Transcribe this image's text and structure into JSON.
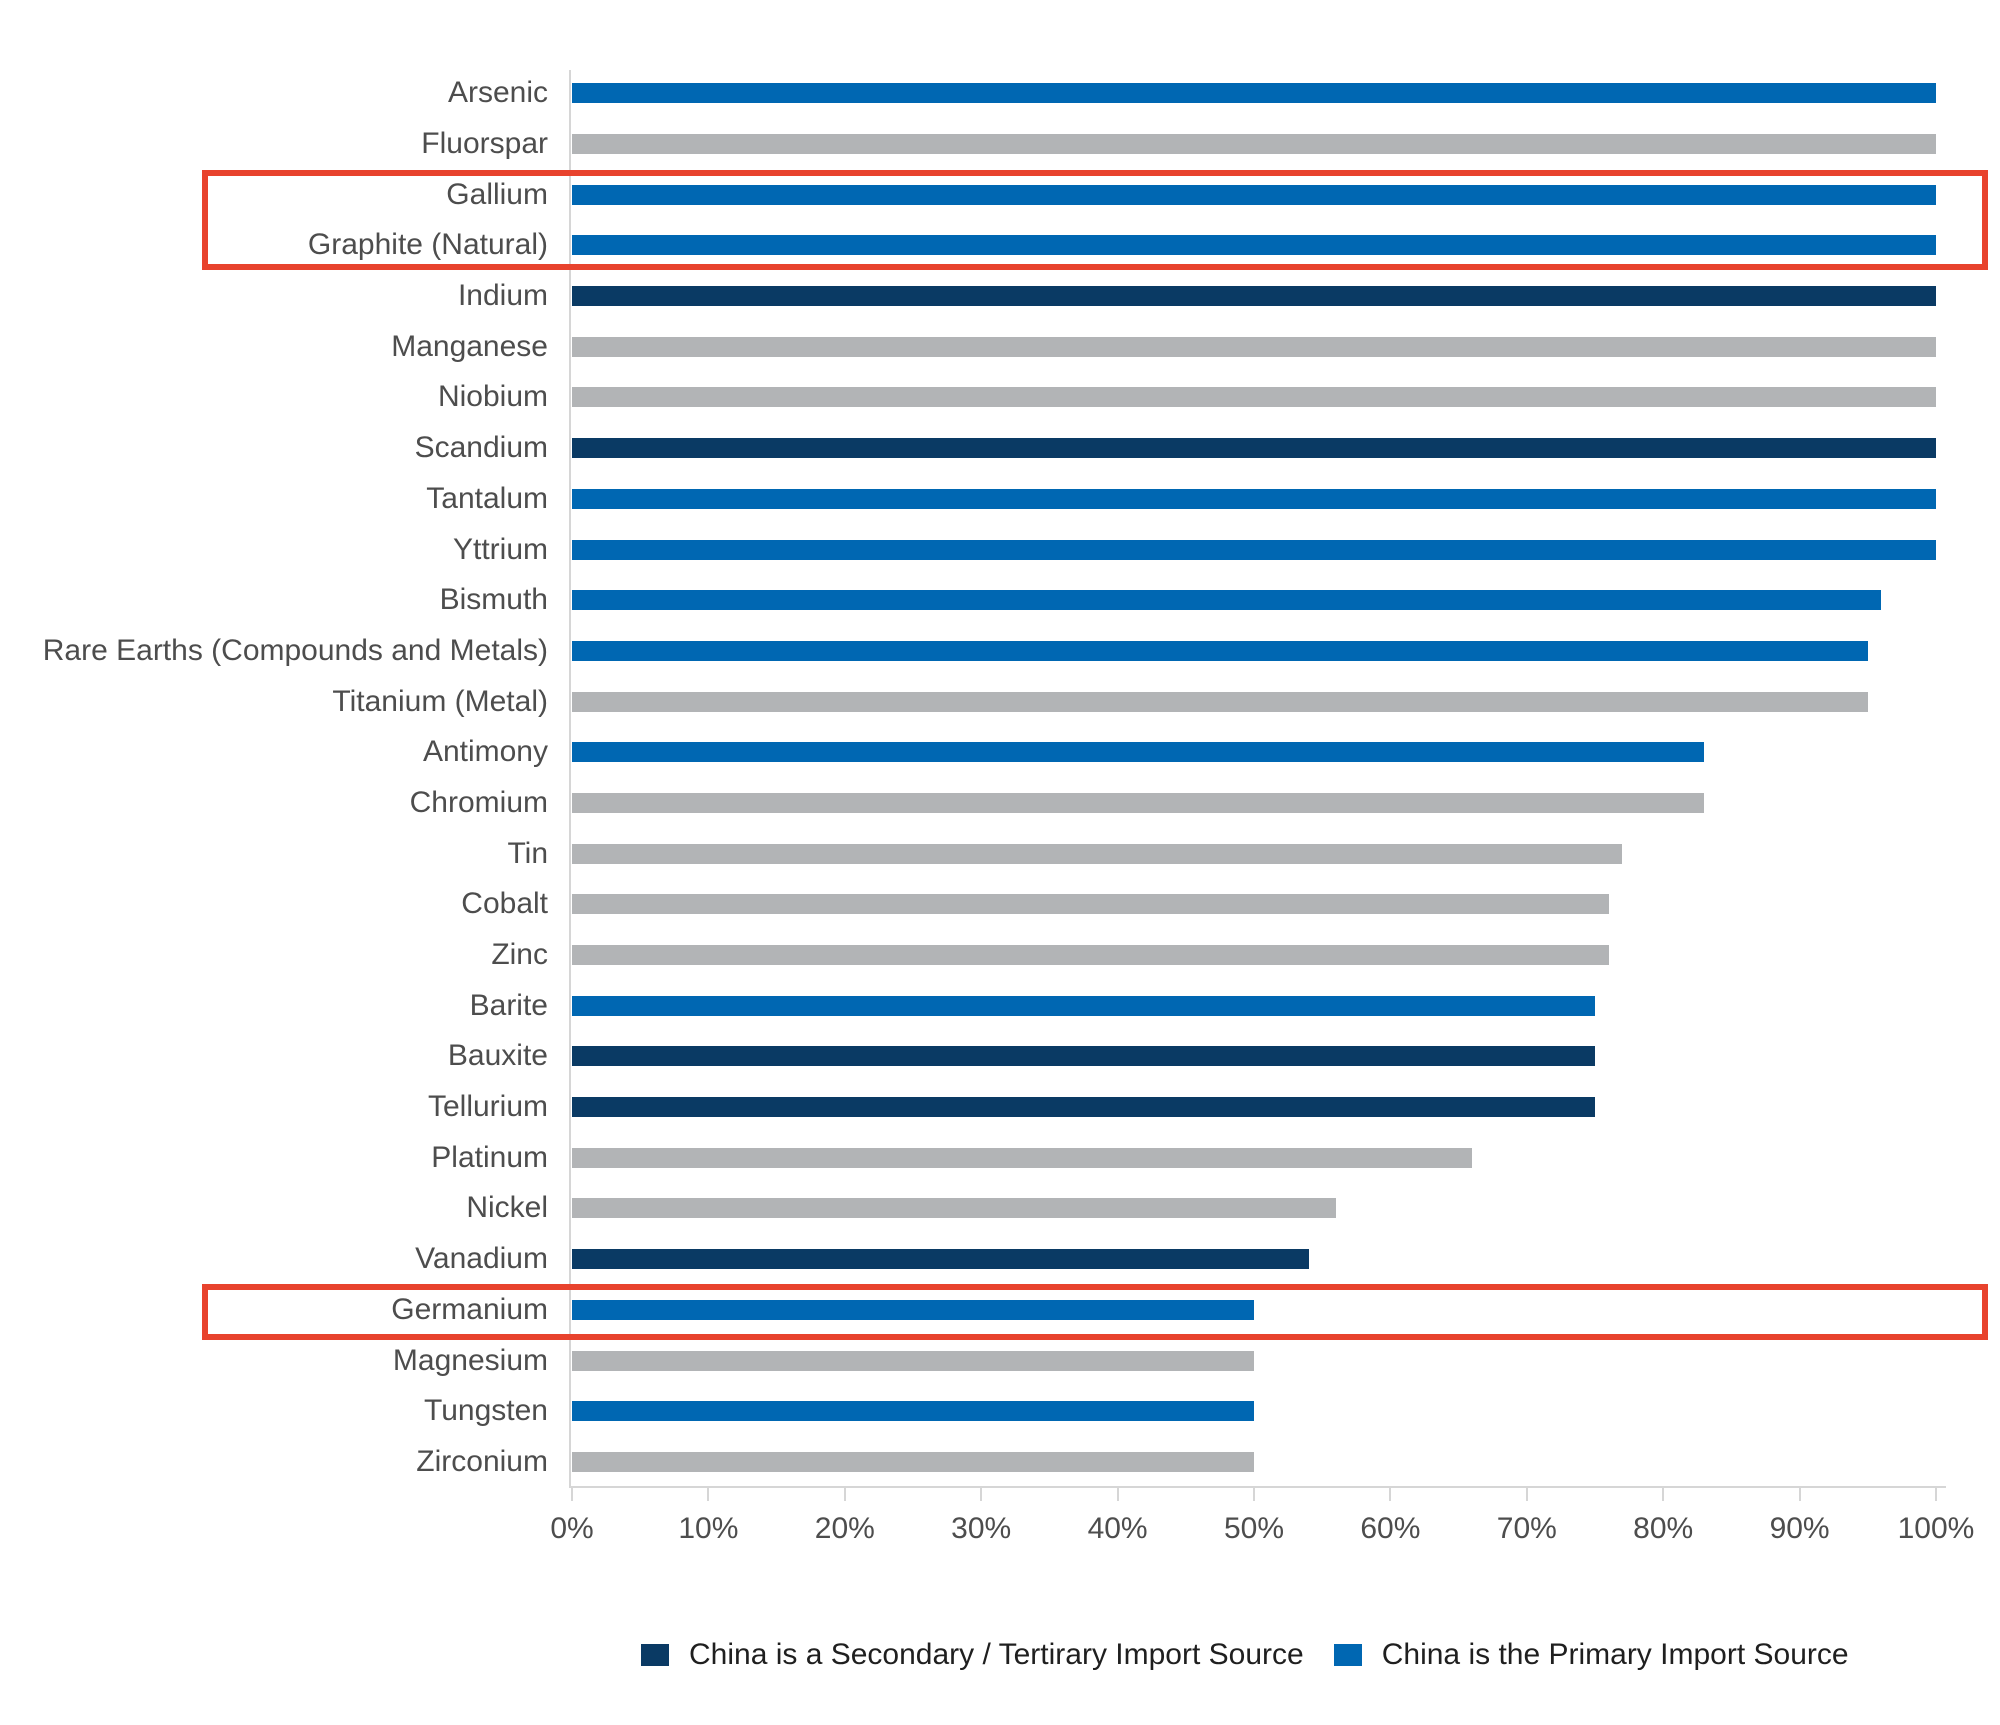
{
  "chart_data": {
    "type": "bar",
    "orientation": "horizontal",
    "title": "",
    "xlabel": "",
    "ylabel": "",
    "xlim": [
      0,
      100
    ],
    "grid": false,
    "x_ticks": [
      "0%",
      "10%",
      "20%",
      "30%",
      "40%",
      "50%",
      "60%",
      "70%",
      "80%",
      "90%",
      "100%"
    ],
    "categories": [
      "Arsenic",
      "Fluorspar",
      "Gallium",
      "Graphite (Natural)",
      "Indium",
      "Manganese",
      "Niobium",
      "Scandium",
      "Tantalum",
      "Yttrium",
      "Bismuth",
      "Rare Earths (Compounds and Metals)",
      "Titanium (Metal)",
      "Antimony",
      "Chromium",
      "Tin",
      "Cobalt",
      "Zinc",
      "Barite",
      "Bauxite",
      "Tellurium",
      "Platinum",
      "Nickel",
      "Vanadium",
      "Germanium",
      "Magnesium",
      "Tungsten",
      "Zirconium"
    ],
    "values": [
      100,
      100,
      100,
      100,
      100,
      100,
      100,
      100,
      100,
      100,
      96,
      95,
      95,
      83,
      83,
      77,
      76,
      76,
      75,
      75,
      75,
      66,
      56,
      54,
      50,
      50,
      50,
      50
    ],
    "china_role": [
      "primary",
      "other",
      "primary",
      "primary",
      "secondary",
      "other",
      "other",
      "secondary",
      "primary",
      "primary",
      "primary",
      "primary",
      "other",
      "primary",
      "other",
      "other",
      "other",
      "other",
      "primary",
      "secondary",
      "secondary",
      "other",
      "other",
      "secondary",
      "primary",
      "other",
      "primary",
      "other"
    ],
    "highlighted_categories": [
      "Gallium",
      "Graphite (Natural)",
      "Germanium"
    ],
    "legend": [
      {
        "role": "secondary",
        "label": "China is a Secondary / Tertirary Import Source"
      },
      {
        "role": "primary",
        "label": "China is the Primary Import Source"
      }
    ],
    "legend_position": "bottom",
    "colors": {
      "primary": "#0067B2",
      "secondary": "#0A3A64",
      "other": "#B2B4B6",
      "highlight_box": "#E8432D",
      "axis": "#d6d6d6",
      "label_text": "#4d4d4d",
      "legend_text": "#1f1f1f"
    }
  }
}
